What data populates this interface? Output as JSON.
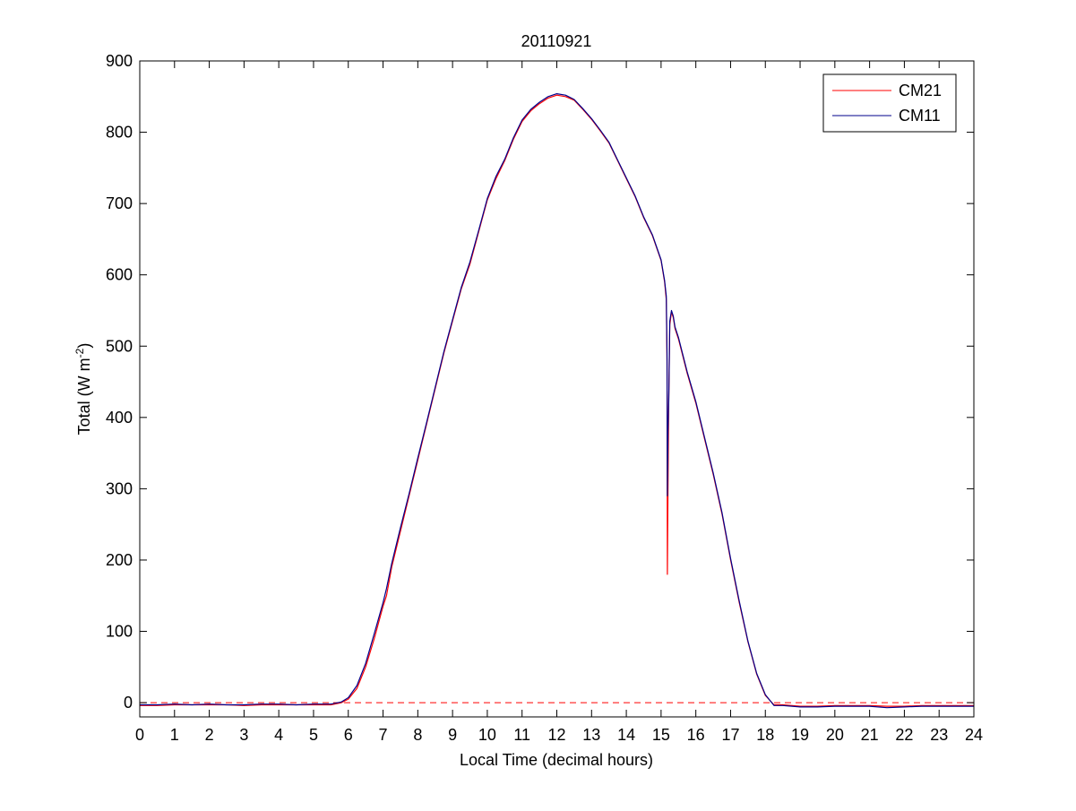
{
  "chart_data": {
    "type": "line",
    "title": "20110921",
    "xlabel": "Local Time (decimal hours)",
    "ylabel_main": "Total (W m",
    "ylabel_exp": "-2",
    "ylabel_close": ")",
    "xlim": [
      0,
      24
    ],
    "ylim": [
      -20,
      900
    ],
    "xticks": [
      0,
      1,
      2,
      3,
      4,
      5,
      6,
      7,
      8,
      9,
      10,
      11,
      12,
      13,
      14,
      15,
      16,
      17,
      18,
      19,
      20,
      21,
      22,
      23,
      24
    ],
    "yticks": [
      0,
      100,
      200,
      300,
      400,
      500,
      600,
      700,
      800,
      900
    ],
    "grid": false,
    "legend_position": "top-right",
    "reference_line": {
      "y": 0,
      "style": "dashed",
      "color": "#ff0000"
    },
    "colors": {
      "CM21": "#ff0000",
      "CM11": "#00008b"
    },
    "series": [
      {
        "name": "CM21",
        "color": "#ff0000",
        "x": [
          0,
          0.5,
          1,
          1.5,
          2,
          2.5,
          3,
          3.5,
          4,
          4.5,
          5,
          5.5,
          5.8,
          6,
          6.25,
          6.5,
          6.75,
          7,
          7.1,
          7.25,
          7.5,
          7.75,
          8,
          8.25,
          8.5,
          8.75,
          9,
          9.25,
          9.5,
          9.75,
          10,
          10.25,
          10.5,
          10.75,
          11,
          11.25,
          11.5,
          11.75,
          12,
          12.25,
          12.5,
          12.75,
          13,
          13.25,
          13.5,
          13.75,
          14,
          14.25,
          14.5,
          14.75,
          15,
          15.1,
          15.15,
          15.17,
          15.18,
          15.2,
          15.22,
          15.25,
          15.3,
          15.35,
          15.4,
          15.5,
          15.75,
          16,
          16.25,
          16.5,
          16.75,
          17,
          17.25,
          17.5,
          17.75,
          18,
          18.25,
          18.5,
          19,
          19.5,
          20,
          20.5,
          21,
          21.5,
          22,
          22.5,
          23,
          23.5,
          24
        ],
        "y": [
          -4,
          -4,
          -3,
          -3,
          -3,
          -3,
          -4,
          -3,
          -3,
          -3,
          -3,
          -3,
          0,
          5,
          20,
          50,
          90,
          135,
          150,
          190,
          240,
          290,
          340,
          390,
          440,
          490,
          535,
          580,
          615,
          660,
          705,
          735,
          760,
          790,
          815,
          830,
          840,
          848,
          852,
          850,
          845,
          832,
          818,
          802,
          785,
          760,
          735,
          710,
          680,
          655,
          620,
          590,
          565,
          480,
          180,
          300,
          420,
          530,
          548,
          540,
          525,
          510,
          462,
          420,
          370,
          320,
          265,
          200,
          140,
          85,
          40,
          10,
          -3,
          -3,
          -5,
          -5,
          -4,
          -4,
          -4,
          -5,
          -5,
          -4,
          -4,
          -4,
          -4
        ]
      },
      {
        "name": "CM11",
        "color": "#00008b",
        "x": [
          0,
          0.5,
          1,
          1.5,
          2,
          2.5,
          3,
          3.5,
          4,
          4.5,
          5,
          5.5,
          5.8,
          6,
          6.25,
          6.5,
          6.75,
          7,
          7.1,
          7.25,
          7.5,
          7.75,
          8,
          8.25,
          8.5,
          8.75,
          9,
          9.25,
          9.5,
          9.75,
          10,
          10.25,
          10.5,
          10.75,
          11,
          11.25,
          11.5,
          11.75,
          12,
          12.25,
          12.5,
          12.75,
          13,
          13.25,
          13.5,
          13.75,
          14,
          14.25,
          14.5,
          14.75,
          15,
          15.1,
          15.15,
          15.17,
          15.18,
          15.2,
          15.22,
          15.25,
          15.3,
          15.35,
          15.4,
          15.5,
          15.75,
          16,
          16.25,
          16.5,
          16.75,
          17,
          17.25,
          17.5,
          17.75,
          18,
          18.25,
          18.5,
          19,
          19.5,
          20,
          20.5,
          21,
          21.5,
          22,
          22.5,
          23,
          23.5,
          24
        ],
        "y": [
          -3,
          -3,
          -2,
          -3,
          -2,
          -3,
          -3,
          -2,
          -2,
          -3,
          -2,
          -2,
          1,
          7,
          24,
          55,
          97,
          140,
          160,
          195,
          245,
          293,
          343,
          392,
          442,
          492,
          537,
          582,
          618,
          662,
          707,
          738,
          762,
          792,
          817,
          832,
          842,
          850,
          854,
          852,
          846,
          833,
          819,
          803,
          786,
          761,
          736,
          711,
          681,
          656,
          621,
          592,
          570,
          490,
          290,
          380,
          420,
          535,
          550,
          542,
          527,
          512,
          464,
          422,
          372,
          322,
          267,
          202,
          142,
          86,
          41,
          11,
          -4,
          -4,
          -6,
          -6,
          -5,
          -5,
          -5,
          -7,
          -6,
          -5,
          -5,
          -5,
          -5
        ]
      }
    ]
  }
}
